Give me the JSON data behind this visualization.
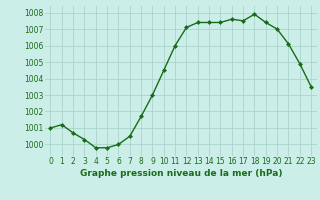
{
  "x": [
    0,
    1,
    2,
    3,
    4,
    5,
    6,
    7,
    8,
    9,
    10,
    11,
    12,
    13,
    14,
    15,
    16,
    17,
    18,
    19,
    20,
    21,
    22,
    23
  ],
  "y": [
    1001.0,
    1001.2,
    1000.7,
    1000.3,
    999.8,
    999.8,
    1000.0,
    1000.5,
    1001.7,
    1003.0,
    1004.5,
    1006.0,
    1007.1,
    1007.4,
    1007.4,
    1007.4,
    1007.6,
    1007.5,
    1007.9,
    1007.4,
    1007.0,
    1006.1,
    1004.9,
    1003.5
  ],
  "line_color": "#1a6b1a",
  "marker": "D",
  "markersize": 2.0,
  "linewidth": 1.0,
  "bg_color": "#cceee8",
  "grid_color": "#aad4cc",
  "xlabel": "Graphe pression niveau de la mer (hPa)",
  "xlabel_fontsize": 6.5,
  "tick_fontsize": 5.5,
  "ylim": [
    999.3,
    1008.4
  ],
  "xlim": [
    -0.5,
    23.5
  ],
  "yticks": [
    1000,
    1001,
    1002,
    1003,
    1004,
    1005,
    1006,
    1007,
    1008
  ],
  "xticks": [
    0,
    1,
    2,
    3,
    4,
    5,
    6,
    7,
    8,
    9,
    10,
    11,
    12,
    13,
    14,
    15,
    16,
    17,
    18,
    19,
    20,
    21,
    22,
    23
  ]
}
